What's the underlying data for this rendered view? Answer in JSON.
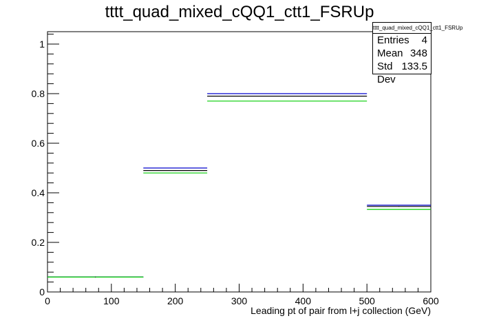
{
  "title": "tttt_quad_mixed_cQQ1_ctt1_FSRUp",
  "stats": {
    "name": "tttt_quad_mixed_cQQ1_ctt1_FSRUp",
    "entries_label": "Entries",
    "entries_value": "4",
    "mean_label": "Mean",
    "mean_value": "348",
    "stddev_label": "Std Dev",
    "stddev_value": "133.5"
  },
  "chart_data": {
    "type": "histogram",
    "title": "tttt_quad_mixed_cQQ1_ctt1_FSRUp",
    "xlabel": "Leading pt of pair from l+j collection (GeV)",
    "ylabel": "",
    "xlim": [
      0,
      600
    ],
    "ylim": [
      0,
      1.05
    ],
    "x_ticks": [
      "0",
      "100",
      "200",
      "300",
      "400",
      "500",
      "600"
    ],
    "y_ticks": [
      "0",
      "0.2",
      "0.4",
      "0.6",
      "0.8",
      "1"
    ],
    "bins": [
      [
        0,
        150
      ],
      [
        150,
        250
      ],
      [
        250,
        500
      ],
      [
        500,
        600
      ]
    ],
    "series": [
      {
        "color": "#000000",
        "values": [
          0.06,
          0.49,
          0.79,
          0.345
        ]
      },
      {
        "color": "#0000cc",
        "values": [
          0.06,
          0.5,
          0.8,
          0.35
        ]
      },
      {
        "color": "#00cc00",
        "values": [
          0.06,
          0.48,
          0.77,
          0.333
        ]
      }
    ],
    "grid": false,
    "legend": "none"
  }
}
